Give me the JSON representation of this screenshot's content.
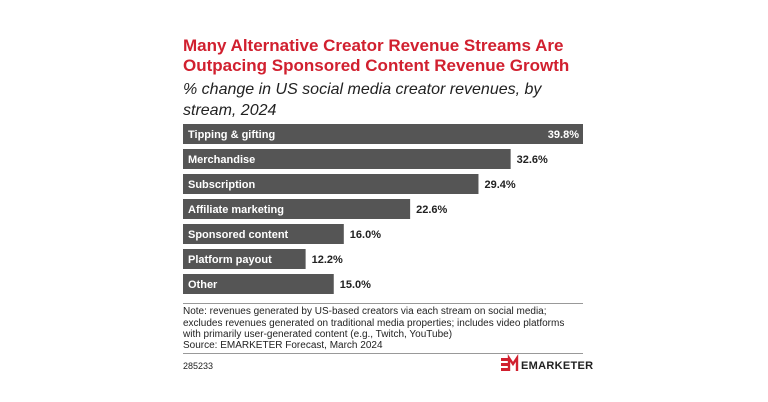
{
  "chart_data": {
    "type": "bar",
    "orientation": "horizontal",
    "title": "Many Alternative Creator Revenue Streams Are Outpacing Sponsored Content Revenue Growth",
    "subtitle": "% change in US social media creator revenues, by stream, 2024",
    "categories": [
      "Tipping & gifting",
      "Merchandise",
      "Subscription",
      "Affiliate marketing",
      "Sponsored content",
      "Platform payout",
      "Other"
    ],
    "values": [
      39.8,
      32.6,
      29.4,
      22.6,
      16.0,
      12.2,
      15.0
    ],
    "value_labels": [
      "39.8%",
      "32.6%",
      "29.4%",
      "22.6%",
      "16.0%",
      "12.2%",
      "15.0%"
    ],
    "color": "#555555",
    "note": "Note: revenues generated by US-based creators via each stream on social media; excludes revenues generated on traditional media properties; includes video platforms with primarily user-generated content (e.g., Twitch, YouTube)",
    "source": "Source: EMARKETER Forecast, March 2024",
    "chart_id": "285233",
    "brand": "EMARKETER"
  }
}
